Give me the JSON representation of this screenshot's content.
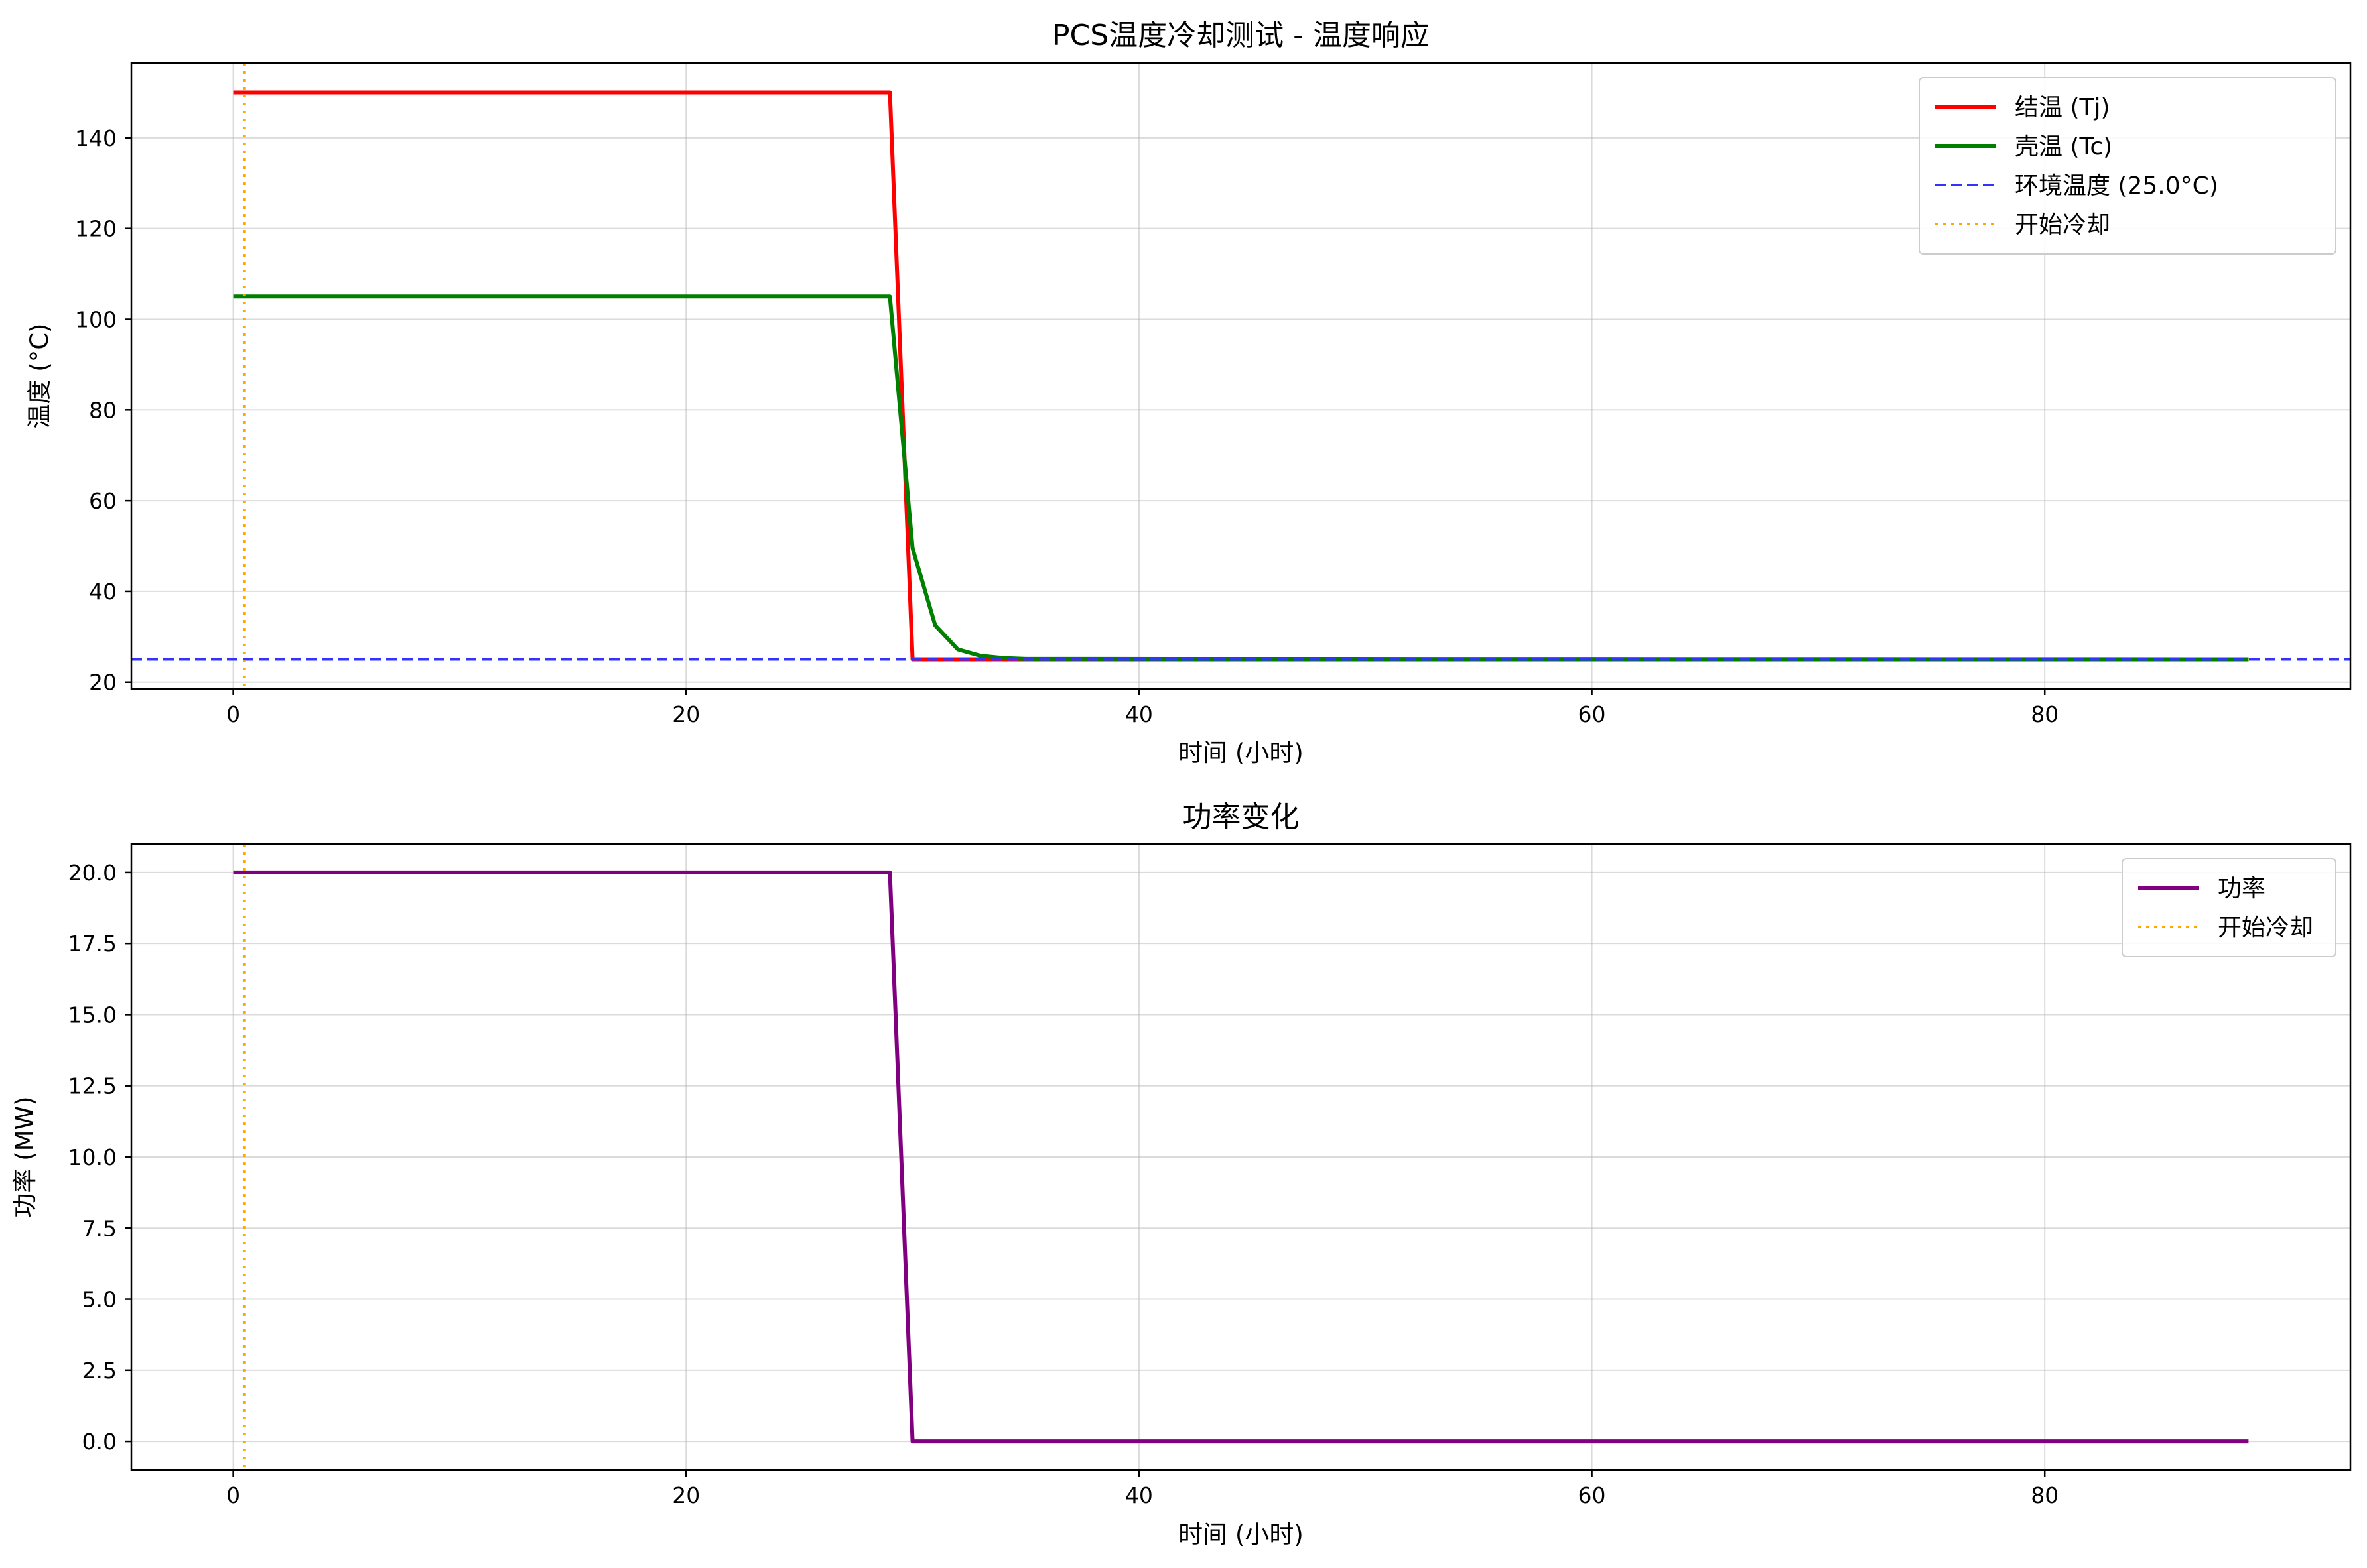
{
  "chart_data": [
    {
      "type": "line",
      "title": "PCS温度冷却测试 - 温度响应",
      "xlabel": "时间 (小时)",
      "ylabel": "温度 (°C)",
      "xlim": [
        -4.5,
        93.5
      ],
      "ylim": [
        18.5,
        156.5
      ],
      "xticks": [
        0,
        20,
        40,
        60,
        80
      ],
      "yticks": [
        20,
        40,
        60,
        80,
        100,
        120,
        140
      ],
      "ytick_labels": [
        "20",
        "40",
        "60",
        "80",
        "100",
        "120",
        "140"
      ],
      "grid": true,
      "legend_position": "top-right",
      "series": [
        {
          "name": "结温 (Tj)",
          "color": "#ff0000",
          "style": "solid",
          "x": [
            0,
            29,
            30,
            31,
            32,
            33,
            34,
            35,
            89
          ],
          "y": [
            150,
            150,
            25,
            25,
            25,
            25,
            25,
            25,
            25
          ]
        },
        {
          "name": "壳温 (Tc)",
          "color": "#008000",
          "style": "solid",
          "x": [
            0,
            29,
            30,
            31,
            32,
            33,
            34,
            35,
            89
          ],
          "y": [
            105,
            105,
            49.5,
            32.5,
            27.2,
            25.8,
            25.3,
            25.1,
            25
          ]
        },
        {
          "name": "环境温度 (25.0°C)",
          "color": "#3333ff",
          "style": "dashed",
          "hline": 25
        },
        {
          "name": "开始冷却",
          "color": "#ffa500",
          "style": "dotted",
          "vline": 0.5
        }
      ]
    },
    {
      "type": "line",
      "title": "功率变化",
      "xlabel": "时间 (小时)",
      "ylabel": "功率 (MW)",
      "xlim": [
        -4.5,
        93.5
      ],
      "ylim": [
        -1,
        21
      ],
      "xticks": [
        0,
        20,
        40,
        60,
        80
      ],
      "yticks": [
        0,
        2.5,
        5,
        7.5,
        10,
        12.5,
        15,
        17.5,
        20
      ],
      "ytick_labels": [
        "0.0",
        "2.5",
        "5.0",
        "7.5",
        "10.0",
        "12.5",
        "15.0",
        "17.5",
        "20.0"
      ],
      "grid": true,
      "legend_position": "top-right",
      "series": [
        {
          "name": "功率",
          "color": "#800080",
          "style": "solid",
          "x": [
            0,
            29,
            30,
            89
          ],
          "y": [
            20,
            20,
            0,
            0
          ]
        },
        {
          "name": "开始冷却",
          "color": "#ffa500",
          "style": "dotted",
          "vline": 0.5
        }
      ]
    }
  ]
}
